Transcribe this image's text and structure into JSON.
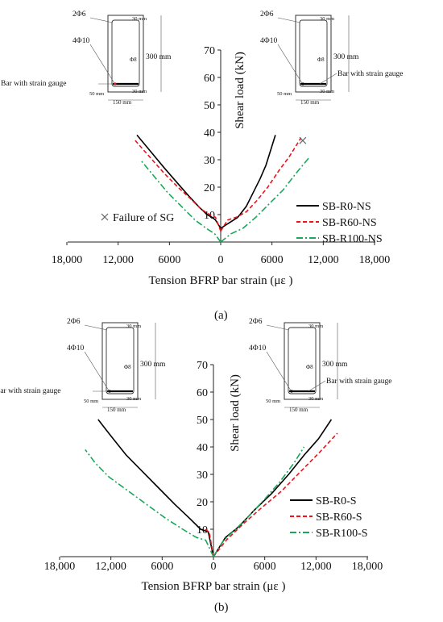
{
  "colors": {
    "axis": "#222222",
    "black": "#000000",
    "red": "#e8141b",
    "green": "#19a85a",
    "section": "#333333"
  },
  "section": {
    "top_bars": "2Φ6",
    "bottom_bars": "4Φ10",
    "stirrup": "Φ8",
    "height": "300 mm",
    "width": "150 mm",
    "cover_top": "30 mm",
    "cover_bottom": "30 mm",
    "cover_side": "50 mm",
    "gauge_label": "Bar with strain gauge"
  },
  "chart_data": [
    {
      "id": "a",
      "panel_label": "(a)",
      "type": "line",
      "xlabel": "Tension BFRP bar strain (με )",
      "ylabel": "Shear load (kN)",
      "x_ticks": [
        18000,
        12000,
        6000,
        0,
        6000,
        12000,
        18000
      ],
      "x_tick_labels": [
        "18,000",
        "12,000",
        "6000",
        "0",
        "6000",
        "12,000",
        "18,000"
      ],
      "xlim": [
        -18000,
        18000
      ],
      "y_ticks": [
        10,
        20,
        30,
        40,
        50,
        60,
        70
      ],
      "ylim": [
        0,
        70
      ],
      "failure_label": "Failure of SG",
      "failure_points": [
        [
          9600,
          37
        ]
      ],
      "legend": [
        "SB-R0-NS",
        "SB-R60-NS",
        "SB-R100-NS"
      ],
      "series": [
        {
          "name": "SB-R0-NS",
          "left_x": [
            0,
            -600,
            -1000,
            -1600,
            -2600,
            -3800,
            -5200,
            -6600,
            -8200,
            -9800
          ],
          "left_y": [
            5,
            8,
            9,
            10,
            13,
            17,
            22,
            27,
            33,
            39
          ],
          "right_x": [
            0,
            1000,
            2000,
            3000,
            3800,
            4600,
            5300,
            5900,
            6400
          ],
          "right_y": [
            5,
            7,
            9,
            13,
            18,
            23,
            28,
            34,
            39
          ]
        },
        {
          "name": "SB-R60-NS",
          "left_x": [
            0,
            -600,
            -1300,
            -2300,
            -3600,
            -5000,
            -6600,
            -8300,
            -10000
          ],
          "left_y": [
            4,
            9,
            10,
            12,
            16,
            20,
            25,
            31,
            37
          ],
          "right_x": [
            0,
            800,
            1800,
            3000,
            4200,
            5500,
            6800,
            8000,
            9400
          ],
          "right_y": [
            4,
            8,
            9,
            11,
            15,
            20,
            26,
            31,
            38
          ]
        },
        {
          "name": "SB-R100-NS",
          "left_x": [
            0,
            -700,
            -1700,
            -3000,
            -4600,
            -6200,
            -7800,
            -9400
          ],
          "left_y": [
            0,
            3,
            5,
            8,
            13,
            18,
            24,
            30
          ],
          "right_x": [
            0,
            1200,
            2600,
            4100,
            5700,
            7300,
            8800,
            10400
          ],
          "right_y": [
            0,
            3,
            5,
            9,
            14,
            19,
            25,
            31
          ]
        }
      ]
    },
    {
      "id": "b",
      "panel_label": "(b)",
      "type": "line",
      "xlabel": "Tension BFRP bar strain (με )",
      "ylabel": "Shear load (kN)",
      "x_ticks": [
        18000,
        12000,
        6000,
        0,
        6000,
        12000,
        18000
      ],
      "x_tick_labels": [
        "18,000",
        "12,000",
        "6000",
        "0",
        "6000",
        "12,000",
        "18,000"
      ],
      "xlim": [
        -18000,
        18000
      ],
      "y_ticks": [
        10,
        20,
        30,
        40,
        50,
        60,
        70
      ],
      "ylim": [
        0,
        70
      ],
      "legend": [
        "SB-R0-S",
        "SB-R60-S",
        "SB-R100-S"
      ],
      "series": [
        {
          "name": "SB-R0-S",
          "left_x": [
            0,
            -600,
            -1500,
            -2800,
            -4500,
            -6400,
            -8300,
            -10200,
            -12000,
            -13500
          ],
          "left_y": [
            0,
            9,
            10,
            14,
            19,
            25,
            31,
            37,
            44,
            50
          ],
          "right_x": [
            0,
            1400,
            3000,
            4800,
            6800,
            8800,
            10600,
            12300,
            13800
          ],
          "right_y": [
            0,
            7,
            11,
            17,
            23,
            30,
            37,
            43,
            50
          ]
        },
        {
          "name": "SB-R60-S",
          "left_x": [
            0,
            -500,
            -1000
          ],
          "left_y": [
            0,
            9,
            10
          ],
          "right_x": [
            0,
            1500,
            3500,
            5700,
            8000,
            10200,
            12400,
            14500
          ],
          "right_y": [
            0,
            6,
            12,
            18,
            24,
            31,
            38,
            45
          ]
        },
        {
          "name": "SB-R100-S",
          "left_x": [
            0,
            -900,
            -2000,
            -3600,
            -5600,
            -7800,
            -10000,
            -12200,
            -13800,
            -15000
          ],
          "left_y": [
            0,
            6,
            7,
            10,
            14,
            19,
            24,
            29,
            34,
            39
          ],
          "right_x": [
            0,
            1200,
            2600,
            4200,
            6000,
            7700,
            9400,
            10600
          ],
          "right_y": [
            0,
            6,
            10,
            15,
            21,
            27,
            34,
            40
          ]
        }
      ]
    }
  ]
}
